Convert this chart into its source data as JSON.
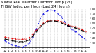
{
  "title": "Milwaukee Weather Outdoor Temperature (vs) THSW Index per Hour (Last 24 Hours)",
  "hours": [
    0,
    1,
    2,
    3,
    4,
    5,
    6,
    7,
    8,
    9,
    10,
    11,
    12,
    13,
    14,
    15,
    16,
    17,
    18,
    19,
    20,
    21,
    22,
    23
  ],
  "outdoor_temp": [
    22,
    20,
    19,
    18,
    17,
    17,
    18,
    21,
    28,
    36,
    44,
    51,
    55,
    57,
    57,
    56,
    53,
    50,
    47,
    45,
    43,
    40,
    37,
    34
  ],
  "thsw_index": [
    14,
    10,
    6,
    4,
    2,
    1,
    4,
    10,
    22,
    38,
    58,
    70,
    76,
    78,
    76,
    71,
    63,
    54,
    45,
    38,
    34,
    28,
    22,
    16
  ],
  "apparent_temp": [
    18,
    16,
    14,
    13,
    12,
    12,
    13,
    16,
    24,
    33,
    42,
    49,
    53,
    55,
    55,
    54,
    51,
    48,
    45,
    43,
    41,
    38,
    35,
    31
  ],
  "temp_color": "#dd0000",
  "thsw_color": "#0000dd",
  "apparent_color": "#000000",
  "bg_color": "#ffffff",
  "plot_bg": "#ffffff",
  "ylim": [
    0,
    80
  ],
  "yticks": [
    10,
    20,
    30,
    40,
    50,
    60,
    70,
    80
  ],
  "ytick_labels": [
    "10",
    "20",
    "30",
    "40",
    "50",
    "60",
    "70",
    "80"
  ],
  "title_fontsize": 3.8,
  "tick_fontsize": 3.0,
  "linewidth": 0.7,
  "markersize": 1.0,
  "grid_color": "#888888",
  "grid_linestyle": "--",
  "grid_linewidth": 0.3
}
